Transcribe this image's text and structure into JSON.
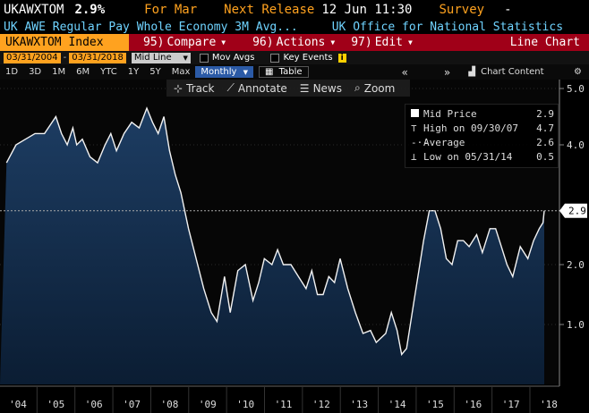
{
  "header": {
    "ticker": "UKAWXTOM",
    "value": "2.9%",
    "for_label": "For Mar",
    "next_release_label": "Next Release",
    "next_release_value": "12 Jun 11:30",
    "survey_label": "Survey",
    "survey_value": "-",
    "description": "UK AWE Regular Pay Whole Economy 3M Avg...",
    "source": "UK Office for National Statistics"
  },
  "menubar": {
    "index_label": "UKAWXTOM Index",
    "compare_num": "95)",
    "compare_label": "Compare",
    "actions_num": "96)",
    "actions_label": "Actions",
    "edit_num": "97)",
    "edit_label": "Edit",
    "title": "Line Chart"
  },
  "controls": {
    "date_from": "03/31/2004",
    "date_to": "03/31/2018",
    "series_type": "Mid Line",
    "mov_avgs": "Mov Avgs",
    "key_events": "Key Events",
    "info_icon": "i"
  },
  "periods": {
    "items": [
      "1D",
      "3D",
      "1M",
      "6M",
      "YTC",
      "1Y",
      "5Y",
      "Max"
    ],
    "frequency": "Monthly",
    "table": "Table",
    "chart_content": "Chart Content"
  },
  "toolbar": {
    "track": "Track",
    "annotate": "Annotate",
    "news": "News",
    "zoom": "Zoom"
  },
  "legend": {
    "mid_label": "Mid Price",
    "mid_value": "2.9",
    "high_label": "High on 09/30/07",
    "high_value": "4.7",
    "avg_label": "Average",
    "avg_value": "2.6",
    "low_label": "Low on 05/31/14",
    "low_value": "0.5"
  },
  "chart_data": {
    "type": "area",
    "title": "",
    "xlabel": "",
    "ylabel": "",
    "x_ticks": [
      "'04",
      "'05",
      "'06",
      "'07",
      "'08",
      "'09",
      "'10",
      "'11",
      "'12",
      "'13",
      "'14",
      "'15",
      "'16",
      "'17",
      "'18"
    ],
    "y_ticks": [
      "1.0",
      "2.0",
      "4.0",
      "5.0"
    ],
    "ylim": [
      0.0,
      5.0
    ],
    "xlim": [
      2004.0,
      2018.3
    ],
    "last_value_label": "2.9",
    "series": [
      {
        "values": [
          [
            2004.0,
            3.7
          ],
          [
            2004.25,
            4.0
          ],
          [
            2004.5,
            4.1
          ],
          [
            2004.75,
            4.2
          ],
          [
            2005.0,
            4.2
          ],
          [
            2005.15,
            4.35
          ],
          [
            2005.3,
            4.5
          ],
          [
            2005.45,
            4.2
          ],
          [
            2005.6,
            4.0
          ],
          [
            2005.75,
            4.3
          ],
          [
            2005.85,
            4.0
          ],
          [
            2006.0,
            4.1
          ],
          [
            2006.2,
            3.8
          ],
          [
            2006.4,
            3.7
          ],
          [
            2006.6,
            4.0
          ],
          [
            2006.75,
            4.2
          ],
          [
            2006.9,
            3.9
          ],
          [
            2007.1,
            4.2
          ],
          [
            2007.3,
            4.4
          ],
          [
            2007.5,
            4.3
          ],
          [
            2007.7,
            4.65
          ],
          [
            2007.85,
            4.4
          ],
          [
            2008.0,
            4.2
          ],
          [
            2008.15,
            4.5
          ],
          [
            2008.3,
            3.9
          ],
          [
            2008.45,
            3.5
          ],
          [
            2008.6,
            3.2
          ],
          [
            2008.8,
            2.6
          ],
          [
            2009.0,
            2.1
          ],
          [
            2009.2,
            1.6
          ],
          [
            2009.4,
            1.2
          ],
          [
            2009.55,
            1.05
          ],
          [
            2009.75,
            1.8
          ],
          [
            2009.9,
            1.2
          ],
          [
            2010.1,
            1.9
          ],
          [
            2010.3,
            2.0
          ],
          [
            2010.5,
            1.4
          ],
          [
            2010.65,
            1.7
          ],
          [
            2010.8,
            2.1
          ],
          [
            2011.0,
            2.0
          ],
          [
            2011.15,
            2.25
          ],
          [
            2011.3,
            2.0
          ],
          [
            2011.5,
            2.0
          ],
          [
            2011.7,
            1.8
          ],
          [
            2011.9,
            1.6
          ],
          [
            2012.05,
            1.9
          ],
          [
            2012.2,
            1.5
          ],
          [
            2012.35,
            1.5
          ],
          [
            2012.5,
            1.8
          ],
          [
            2012.65,
            1.7
          ],
          [
            2012.8,
            2.1
          ],
          [
            2013.0,
            1.6
          ],
          [
            2013.2,
            1.2
          ],
          [
            2013.4,
            0.85
          ],
          [
            2013.6,
            0.9
          ],
          [
            2013.75,
            0.7
          ],
          [
            2014.0,
            0.85
          ],
          [
            2014.15,
            1.2
          ],
          [
            2014.3,
            0.9
          ],
          [
            2014.42,
            0.5
          ],
          [
            2014.55,
            0.6
          ],
          [
            2014.75,
            1.4
          ],
          [
            2014.9,
            2.0
          ],
          [
            2015.0,
            2.4
          ],
          [
            2015.15,
            2.9
          ],
          [
            2015.3,
            2.9
          ],
          [
            2015.45,
            2.6
          ],
          [
            2015.6,
            2.1
          ],
          [
            2015.75,
            2.0
          ],
          [
            2015.9,
            2.4
          ],
          [
            2016.05,
            2.4
          ],
          [
            2016.2,
            2.3
          ],
          [
            2016.4,
            2.5
          ],
          [
            2016.55,
            2.2
          ],
          [
            2016.75,
            2.6
          ],
          [
            2016.9,
            2.6
          ],
          [
            2017.05,
            2.3
          ],
          [
            2017.2,
            2.0
          ],
          [
            2017.35,
            1.8
          ],
          [
            2017.55,
            2.3
          ],
          [
            2017.75,
            2.1
          ],
          [
            2017.9,
            2.4
          ],
          [
            2018.05,
            2.6
          ],
          [
            2018.15,
            2.7
          ],
          [
            2018.25,
            2.9
          ]
        ]
      }
    ]
  }
}
